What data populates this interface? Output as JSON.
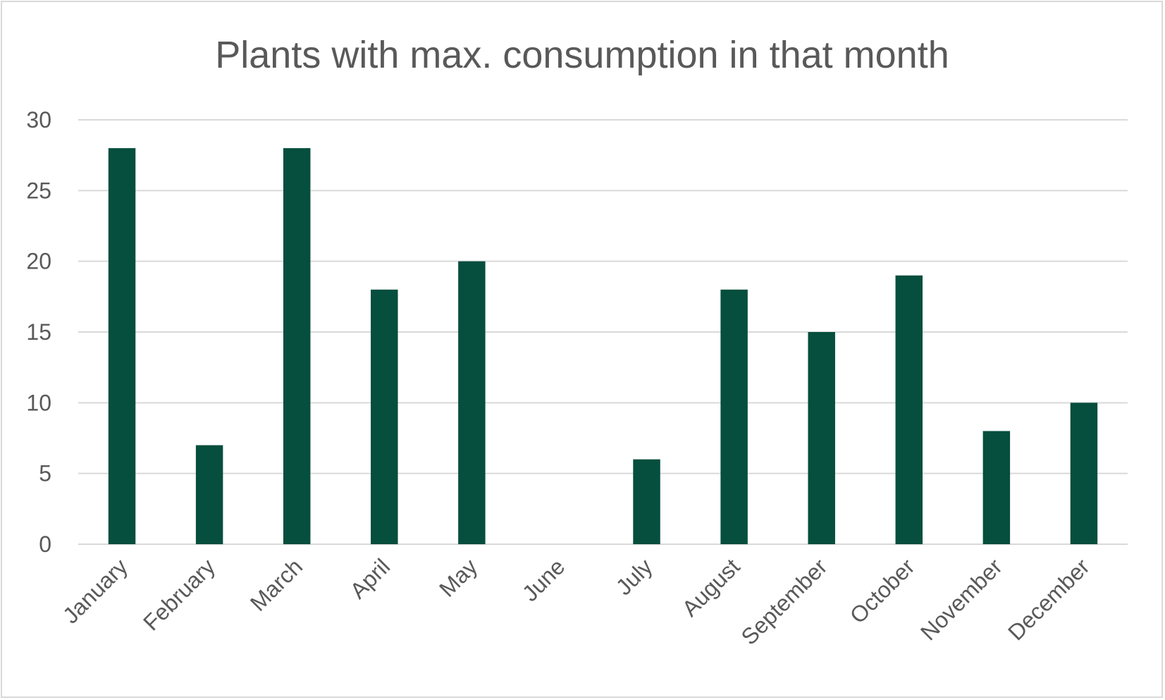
{
  "chart_data": {
    "type": "bar",
    "title": "Plants with max. consumption in that month",
    "xlabel": "",
    "ylabel": "",
    "categories": [
      "January",
      "February",
      "March",
      "April",
      "May",
      "June",
      "July",
      "August",
      "September",
      "October",
      "November",
      "December"
    ],
    "values": [
      28,
      7,
      28,
      18,
      20,
      0,
      6,
      18,
      15,
      19,
      8,
      10
    ],
    "ylim": [
      0,
      30
    ],
    "yticks": [
      "0",
      "5",
      "10",
      "15",
      "20",
      "25",
      "30"
    ],
    "grid": true,
    "legend": "none",
    "bar_color": "#064e3d"
  }
}
